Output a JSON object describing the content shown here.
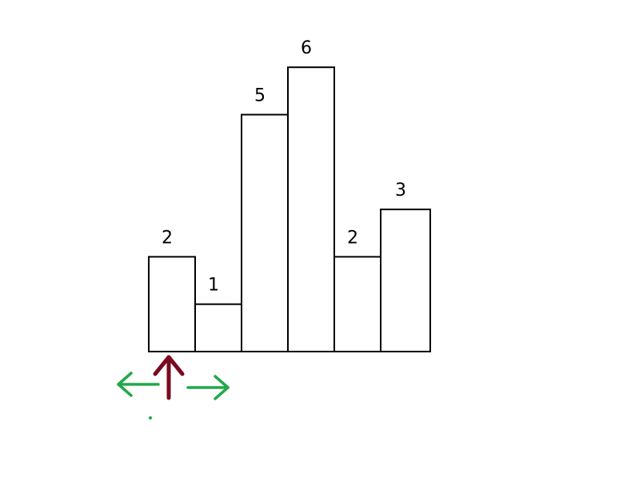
{
  "colors": {
    "bar_fill": "#ffffff",
    "bar_stroke": "#000000",
    "pointer_arrow": "#7a0a1e",
    "scan_arrows": "#22a84a"
  },
  "annotations": {
    "pointer_icon": "up-arrow",
    "scan_icons": [
      "left-arrow",
      "right-arrow"
    ],
    "pointer_category_index": 0
  },
  "chart_data": {
    "type": "bar",
    "categories": [
      "",
      "",
      "",
      "",
      "",
      ""
    ],
    "values": [
      2,
      1,
      5,
      6,
      2,
      3
    ],
    "data_labels": [
      "2",
      "1",
      "5",
      "6",
      "2",
      "3"
    ],
    "title": "",
    "xlabel": "",
    "ylabel": "",
    "ylim": [
      0,
      6
    ],
    "grid": false,
    "legend": "none"
  }
}
